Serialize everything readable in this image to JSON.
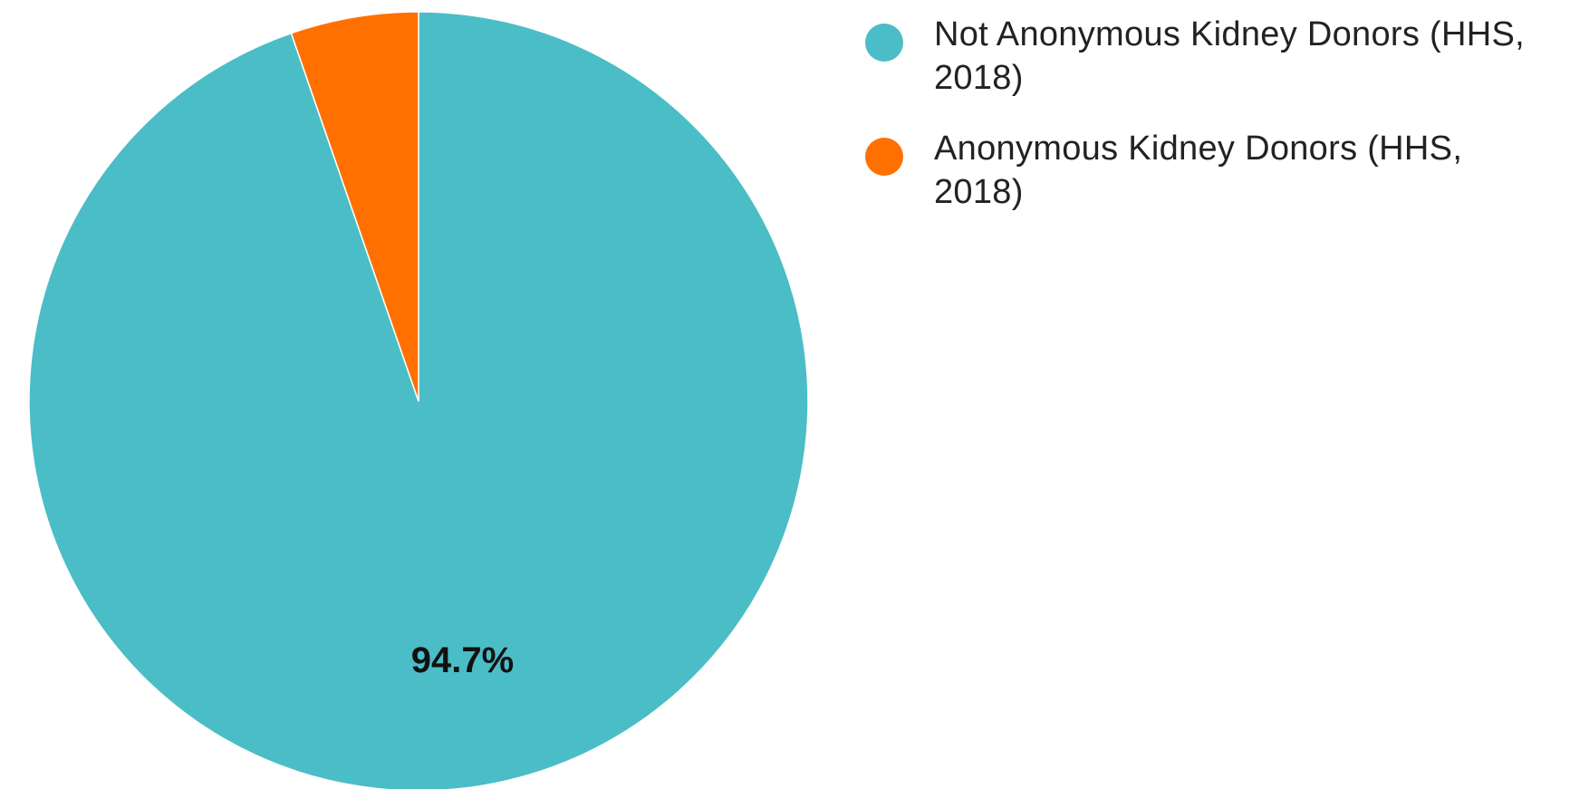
{
  "chart_data": {
    "type": "pie",
    "categories": [
      "Not Anonymous Kidney Donors (HHS, 2018)",
      "Anonymous Kidney Donors (HHS, 2018)"
    ],
    "values": [
      94.7,
      5.3
    ],
    "unit": "%",
    "slice_labels": [
      "94.7%",
      ""
    ],
    "colors": [
      "#4bbdc6",
      "#ff7000"
    ],
    "start_angle_deg": 0,
    "direction": "clockwise",
    "title": "",
    "legend_position": "right"
  },
  "legend": {
    "items": [
      {
        "label": "Not Anonymous Kidney Donors (HHS, 2018)",
        "color": "#4bbdc6"
      },
      {
        "label": "Anonymous Kidney Donors (HHS, 2018)",
        "color": "#ff7000"
      }
    ]
  }
}
